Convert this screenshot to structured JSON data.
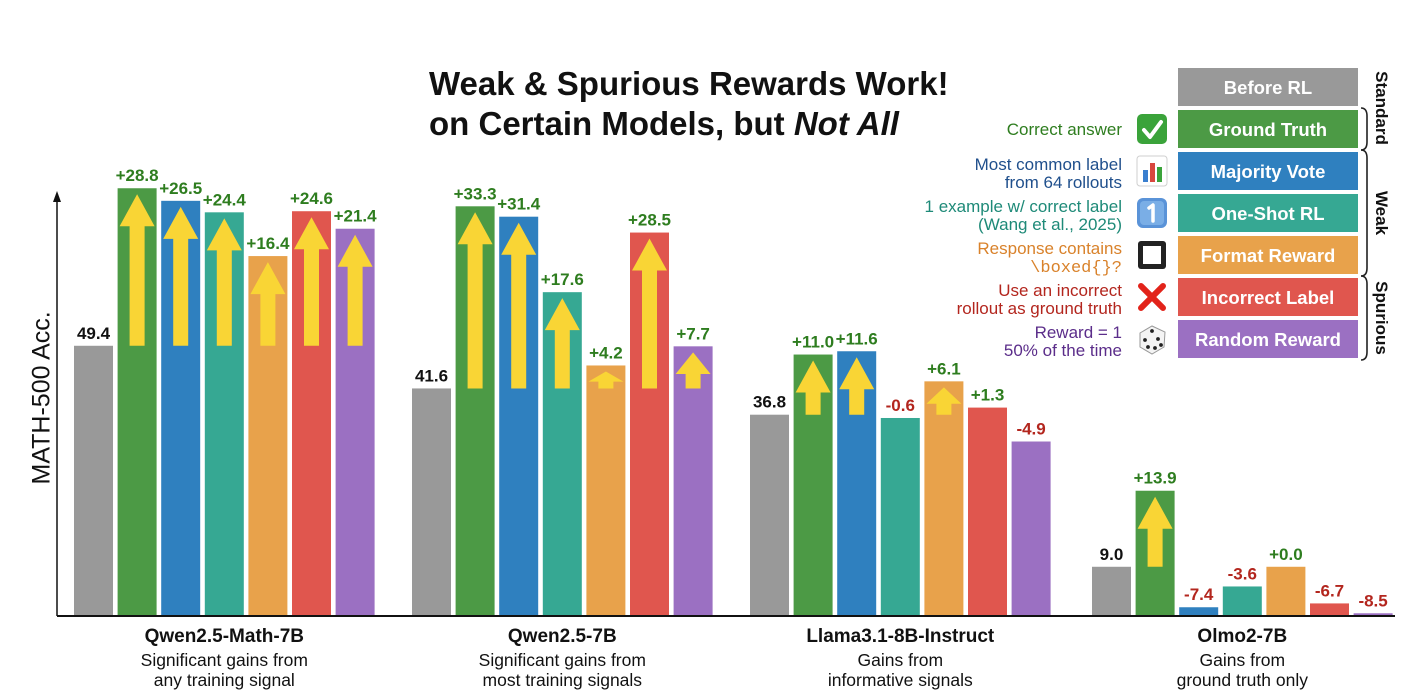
{
  "title": {
    "line1": "Weak & Spurious Rewards Work!",
    "line2_prefix": "on Certain Models, but ",
    "line2_emph": "Not All"
  },
  "chart_data": {
    "type": "bar",
    "ylabel": "MATH-500 Acc.",
    "ylim": [
      0,
      85
    ],
    "series": [
      {
        "name": "Before RL",
        "color": "#999999"
      },
      {
        "name": "Ground Truth",
        "color": "#4c9a45"
      },
      {
        "name": "Majority Vote",
        "color": "#2f80bf"
      },
      {
        "name": "One-Shot RL",
        "color": "#36a893"
      },
      {
        "name": "Format Reward",
        "color": "#e8a24b"
      },
      {
        "name": "Incorrect Label",
        "color": "#e0564e"
      },
      {
        "name": "Random Reward",
        "color": "#9b70c2"
      }
    ],
    "groups": [
      {
        "name": "Qwen2.5-Math-7B",
        "subtitle": [
          "Significant gains from",
          "any training signal"
        ],
        "baseline": 49.4,
        "baseline_label": "49.4",
        "deltas": [
          28.8,
          26.5,
          24.4,
          16.4,
          24.6,
          21.4
        ],
        "delta_labels": [
          "+28.8",
          "+26.5",
          "+24.4",
          "+16.4",
          "+24.6",
          "+21.4"
        ]
      },
      {
        "name": "Qwen2.5-7B",
        "subtitle": [
          "Significant gains from",
          "most training signals"
        ],
        "baseline": 41.6,
        "baseline_label": "41.6",
        "deltas": [
          33.3,
          31.4,
          17.6,
          4.2,
          28.5,
          7.7
        ],
        "delta_labels": [
          "+33.3",
          "+31.4",
          "+17.6",
          "+4.2",
          "+28.5",
          "+7.7"
        ]
      },
      {
        "name": "Llama3.1-8B-Instruct",
        "subtitle": [
          "Gains from",
          "informative signals"
        ],
        "baseline": 36.8,
        "baseline_label": "36.8",
        "deltas": [
          11.0,
          11.6,
          -0.6,
          6.1,
          1.3,
          -4.9
        ],
        "delta_labels": [
          "+11.0",
          "+11.6",
          "-0.6",
          "+6.1",
          "+1.3",
          "-4.9"
        ]
      },
      {
        "name": "Olmo2-7B",
        "subtitle": [
          "Gains from",
          "ground truth only"
        ],
        "baseline": 9.0,
        "baseline_label": "9.0",
        "deltas": [
          13.9,
          -7.4,
          -3.6,
          0.0,
          -6.7,
          -8.5
        ],
        "delta_labels": [
          "+13.9",
          "-7.4",
          "-3.6",
          "+0.0",
          "-6.7",
          "-8.5"
        ]
      }
    ],
    "positive_color": "#2e7d1f",
    "negative_color": "#b3261e",
    "arrow_color": "#f9d535"
  },
  "legend": {
    "items": [
      {
        "label": "Before RL",
        "desc": [],
        "desc_color": "#111111",
        "icon": ""
      },
      {
        "label": "Ground Truth",
        "desc": [
          "Correct answer"
        ],
        "desc_color": "#2e7d1f",
        "icon": "check-icon"
      },
      {
        "label": "Majority Vote",
        "desc": [
          "Most common label",
          "from 64 rollouts"
        ],
        "desc_color": "#1f4f8c",
        "icon": "bar-chart-icon"
      },
      {
        "label": "One-Shot RL",
        "desc": [
          "1 example w/ correct label",
          "(Wang et al., 2025)"
        ],
        "desc_color": "#1e8a78",
        "icon": "keycap-one-icon"
      },
      {
        "label": "Format Reward",
        "desc": [
          "Response contains",
          "\\boxed{}?"
        ],
        "desc_color": "#d9822b",
        "icon": "box-icon"
      },
      {
        "label": "Incorrect Label",
        "desc": [
          "Use an incorrect",
          "rollout as ground truth"
        ],
        "desc_color": "#b3261e",
        "icon": "cross-icon"
      },
      {
        "label": "Random Reward",
        "desc": [
          "Reward = 1",
          "50% of the time"
        ],
        "desc_color": "#5b2d8a",
        "icon": "dice-icon"
      }
    ],
    "brackets": [
      "Standard",
      "Weak",
      "Spurious"
    ]
  }
}
